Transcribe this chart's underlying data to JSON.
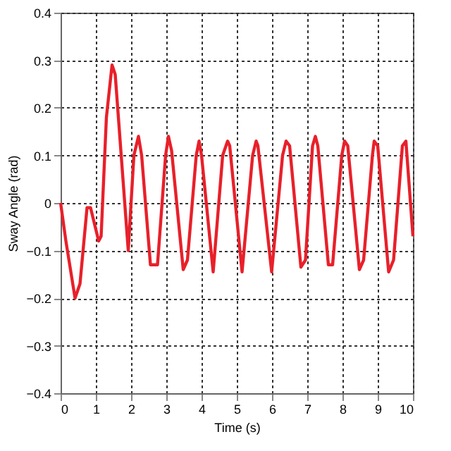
{
  "chart_data": {
    "type": "line",
    "xlabel": "Time (s)",
    "ylabel": "Sway Angle (rad)",
    "xlim": [
      0,
      10
    ],
    "xticks": [
      0,
      1,
      2,
      3,
      4,
      5,
      6,
      7,
      8,
      9,
      10
    ],
    "ylim": [
      -0.4,
      0.4
    ],
    "yticks": [
      -0.4,
      -0.3,
      -0.2,
      -0.1,
      0,
      0.1,
      0.2,
      0.3,
      0.4
    ],
    "grid": true,
    "line_style": "solid",
    "series": [
      {
        "color": "#e8202a",
        "x": [
          0,
          0.15,
          0.41,
          0.55,
          0.75,
          0.85,
          1.08,
          1.15,
          1.3,
          1.46,
          1.55,
          1.92,
          2.08,
          2.21,
          2.3,
          2.55,
          2.75,
          2.98,
          3.06,
          3.15,
          3.48,
          3.6,
          3.85,
          3.93,
          4.0,
          4.33,
          4.6,
          4.74,
          4.8,
          5.15,
          5.45,
          5.55,
          5.6,
          5.99,
          6.3,
          6.4,
          6.5,
          6.82,
          6.95,
          7.15,
          7.23,
          7.3,
          7.6,
          7.72,
          7.98,
          8.06,
          8.15,
          8.48,
          8.6,
          8.85,
          8.9,
          9.0,
          9.31,
          9.45,
          9.7,
          9.8,
          10
        ],
        "values": [
          0,
          -0.08,
          -0.2,
          -0.17,
          -0.01,
          -0.01,
          -0.08,
          -0.07,
          0.18,
          0.29,
          0.27,
          -0.1,
          0.1,
          0.14,
          0.1,
          -0.13,
          -0.13,
          0.1,
          0.14,
          0.11,
          -0.14,
          -0.12,
          0.1,
          0.13,
          0.1,
          -0.145,
          0.1,
          0.13,
          0.12,
          -0.145,
          0.1,
          0.13,
          0.12,
          -0.145,
          0.1,
          0.13,
          0.12,
          -0.135,
          -0.12,
          0.12,
          0.14,
          0.12,
          -0.13,
          -0.13,
          0.1,
          0.13,
          0.12,
          -0.14,
          -0.12,
          0.1,
          0.13,
          0.12,
          -0.145,
          -0.12,
          0.12,
          0.13,
          -0.07
        ]
      }
    ]
  }
}
